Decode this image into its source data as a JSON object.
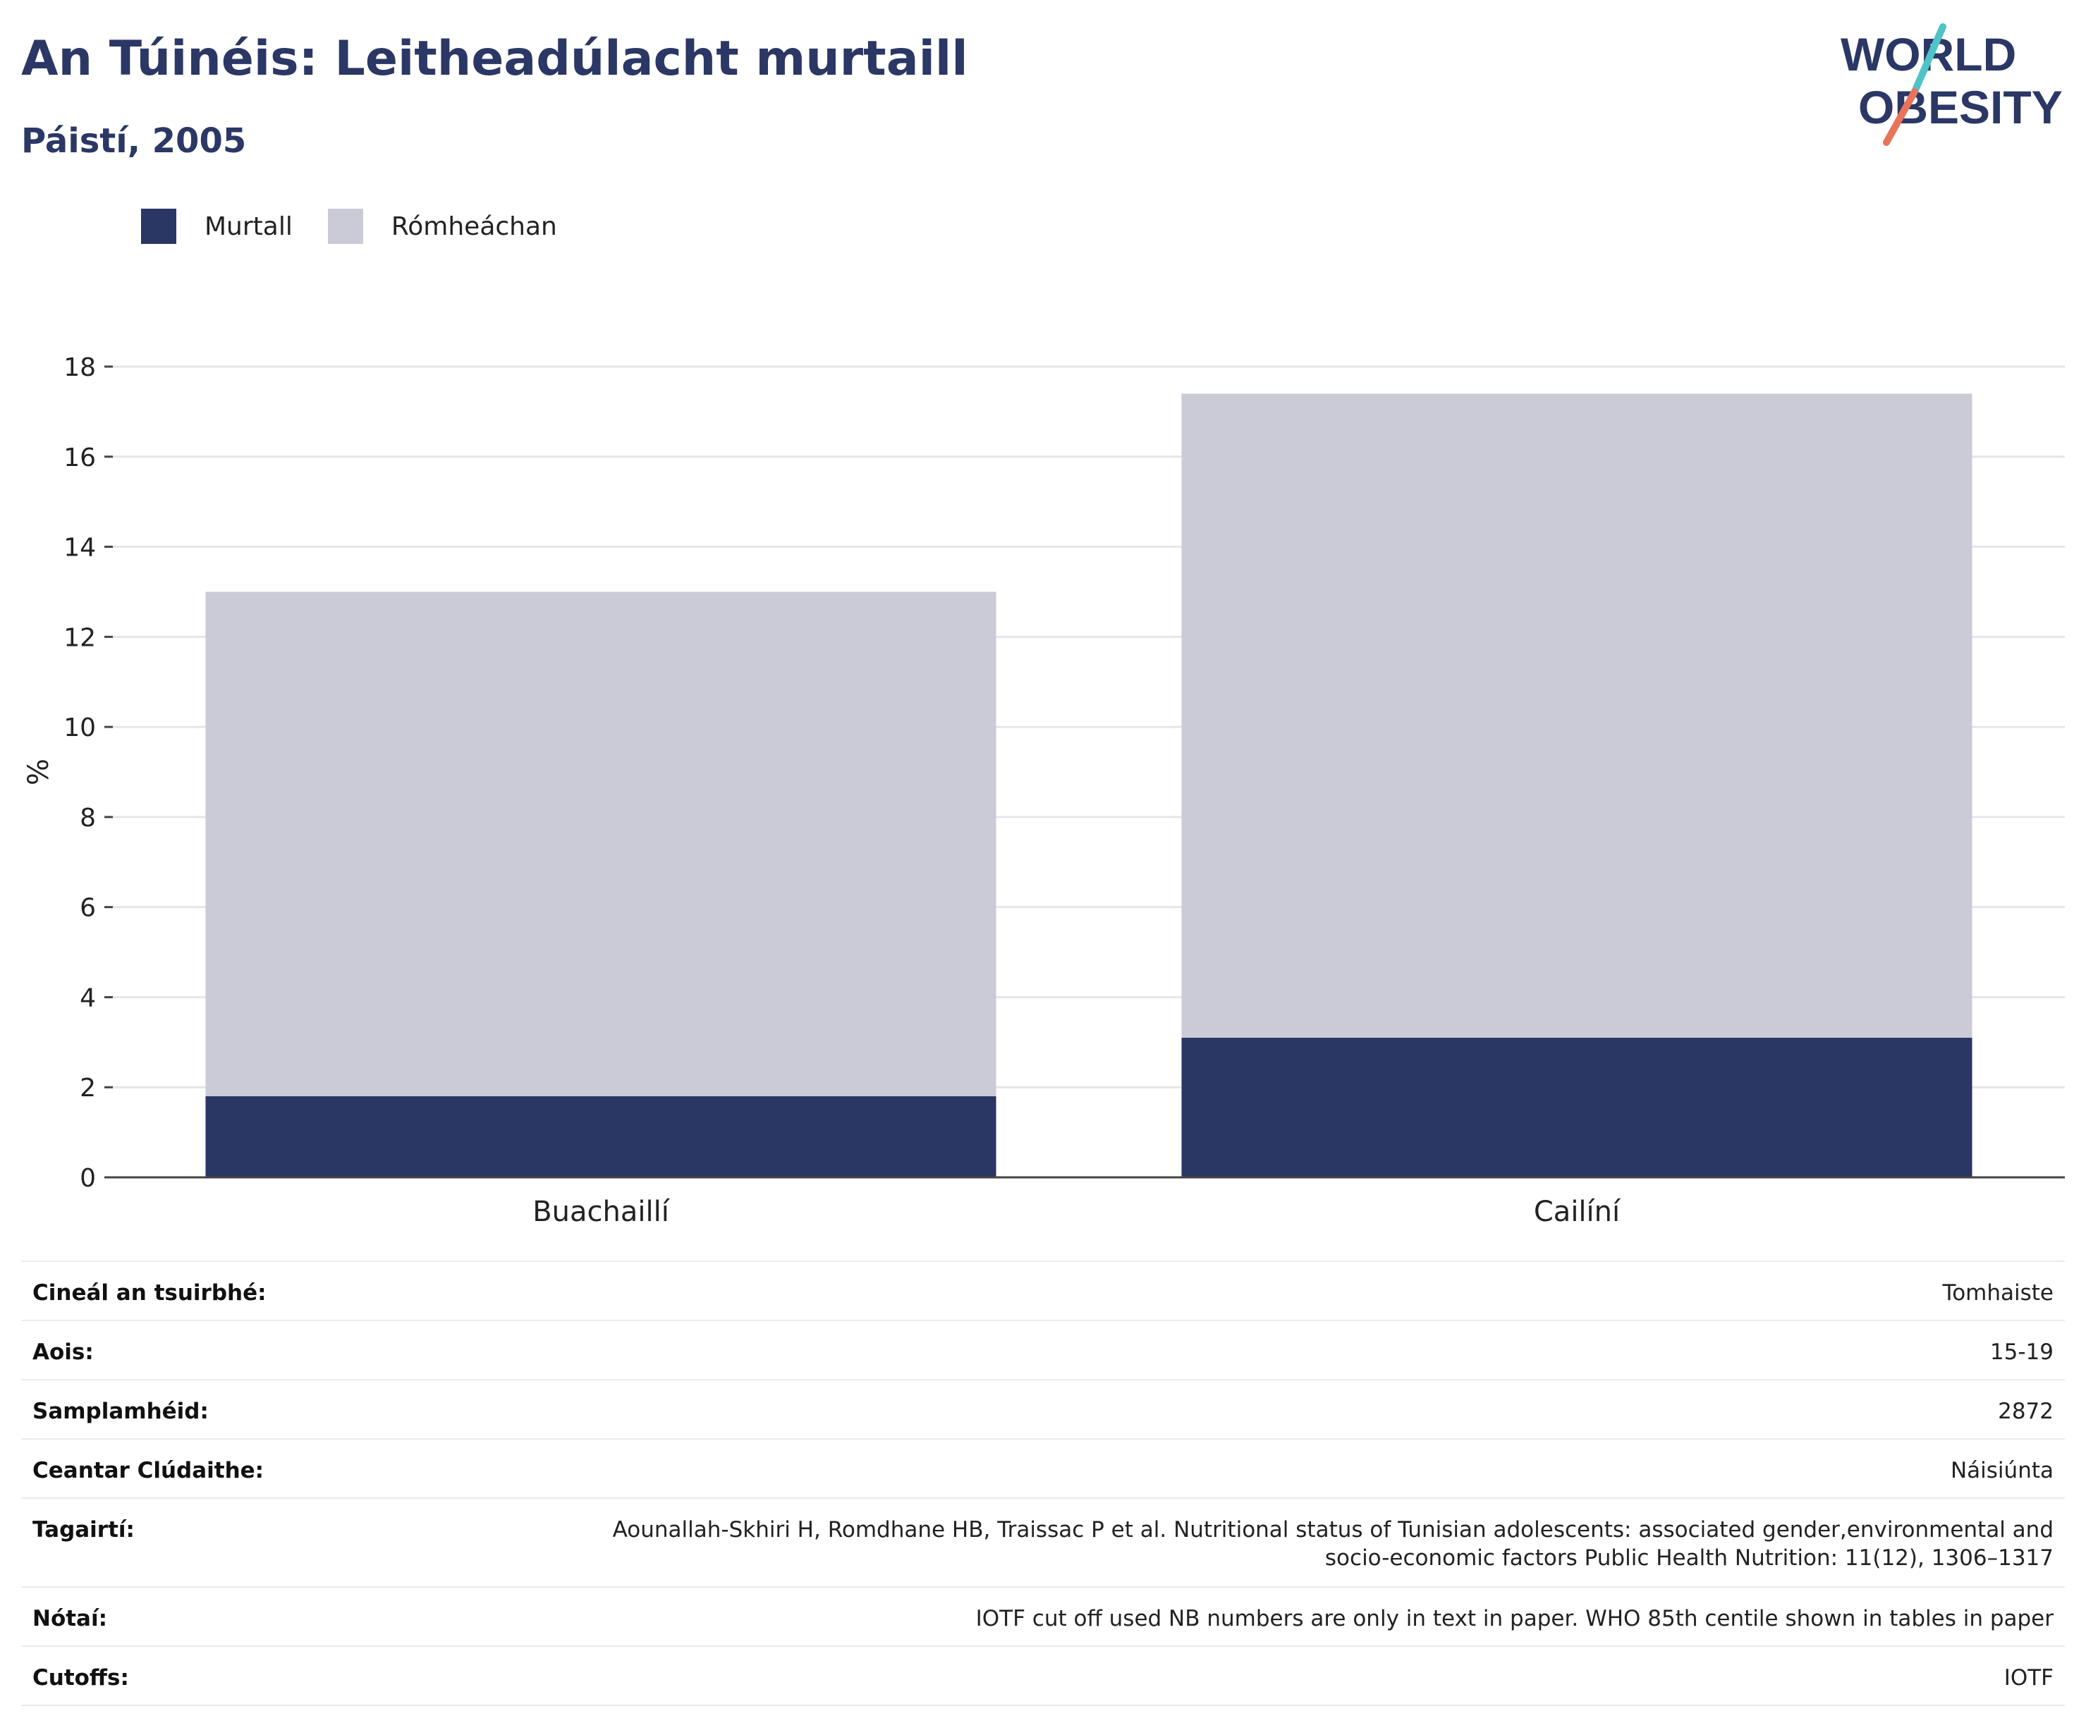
{
  "header": {
    "title": "An Túinéis: Leitheadúlacht murtaill",
    "subtitle": "Páistí, 2005"
  },
  "logo": {
    "line1": "WORLD",
    "line2": "OBESITY",
    "colors": {
      "text": "#2b3765",
      "slash_top": "#4fc3c7",
      "slash_bottom": "#e8735a"
    }
  },
  "legend": {
    "items": [
      {
        "label": "Murtall",
        "color": "#2a3663"
      },
      {
        "label": "Rómheáchan",
        "color": "#cacbd7"
      }
    ]
  },
  "chart_data": {
    "type": "bar",
    "stacked": true,
    "categories": [
      "Buachaillí",
      "Cailíní"
    ],
    "series": [
      {
        "name": "Murtall",
        "color": "#2a3663",
        "values": [
          1.8,
          3.1
        ]
      },
      {
        "name": "Rómheáchan",
        "color": "#cacbd7",
        "values": [
          11.2,
          14.3
        ]
      }
    ],
    "ylabel": "%",
    "ylim": [
      0,
      18
    ],
    "yticks": [
      0,
      2,
      4,
      6,
      8,
      10,
      12,
      14,
      16,
      18
    ],
    "grid": true,
    "legend_position": "top-left"
  },
  "meta": {
    "rows": [
      {
        "label": "Cineál an tsuirbhé:",
        "value": "Tomhaiste"
      },
      {
        "label": "Aois:",
        "value": "15-19"
      },
      {
        "label": "Samplamhéid:",
        "value": "2872"
      },
      {
        "label": "Ceantar Clúdaithe:",
        "value": "Náisiúnta"
      },
      {
        "label": "Tagairtí:",
        "value": "Aounallah-Skhiri H, Romdhane HB, Traissac P et al. Nutritional status of Tunisian adolescents: associated gender,environmental and socio-economic factors Public Health Nutrition: 11(12), 1306–1317"
      },
      {
        "label": "Nótaí:",
        "value": "IOTF cut off used NB numbers are only in text in paper. WHO 85th centile shown in tables in paper"
      },
      {
        "label": "Cutoffs:",
        "value": "IOTF"
      }
    ]
  }
}
